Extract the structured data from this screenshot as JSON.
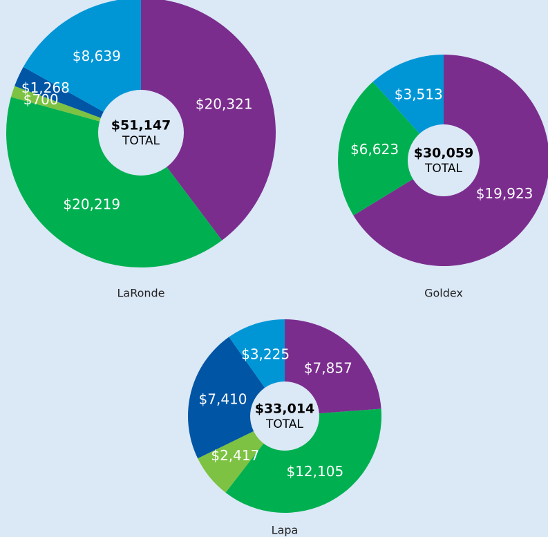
{
  "chart_data": [
    {
      "type": "pie",
      "title": "LaRonde",
      "values": [
        20321,
        20219,
        700,
        1268,
        8639
      ],
      "value_labels": [
        "$20,321",
        "$20,219",
        "$700",
        "$1,268",
        "$8,639"
      ],
      "colors": [
        "#7b2d8e",
        "#00b050",
        "#7dc242",
        "#0055a5",
        "#0096d6"
      ],
      "center_label": "$51,147",
      "center_sublabel": "TOTAL"
    },
    {
      "type": "pie",
      "title": "Goldex",
      "values": [
        19923,
        6623,
        3513
      ],
      "value_labels": [
        "$19,923",
        "$6,623",
        "$3,513"
      ],
      "colors": [
        "#7b2d8e",
        "#00b050",
        "#0096d6"
      ],
      "center_label": "$30,059",
      "center_sublabel": "TOTAL"
    },
    {
      "type": "pie",
      "title": "Lapa",
      "values": [
        7857,
        12105,
        2417,
        7410,
        3225
      ],
      "value_labels": [
        "$7,857",
        "$12,105",
        "$2,417",
        "$7,410",
        "$3,225"
      ],
      "colors": [
        "#7b2d8e",
        "#00b050",
        "#7dc242",
        "#0055a5",
        "#0096d6"
      ],
      "center_label": "$33,014",
      "center_sublabel": "TOTAL"
    }
  ]
}
